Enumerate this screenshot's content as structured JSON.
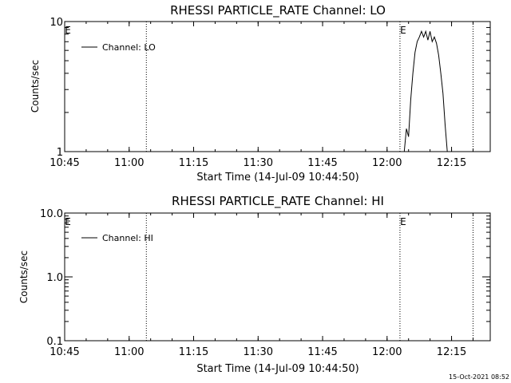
{
  "panels": [
    {
      "id": "lo",
      "title": "RHESSI PARTICLE_RATE Channel: LO",
      "ylabel": "Counts/sec",
      "xlabel": "Start Time (14-Jul-09 10:44:50)",
      "legend": "Channel: LO",
      "event_marker": "E"
    },
    {
      "id": "hi",
      "title": "RHESSI PARTICLE_RATE Channel: HI",
      "ylabel": "Counts/sec",
      "xlabel": "Start Time (14-Jul-09 10:44:50)",
      "legend": "Channel: HI",
      "event_marker": "E"
    }
  ],
  "footer_timestamp": "15-Oct-2021 08:52",
  "chart_data": [
    {
      "type": "line",
      "title": "RHESSI PARTICLE_RATE Channel: LO",
      "xlabel": "Start Time (14-Jul-09 10:44:50)",
      "ylabel": "Counts/sec",
      "yscale": "log",
      "xlim": [
        "10:45",
        "12:24"
      ],
      "ylim": [
        1,
        10
      ],
      "ytick_labels": [
        "1",
        "10"
      ],
      "xtick_labels": [
        "10:45",
        "11:00",
        "11:15",
        "11:30",
        "11:45",
        "12:00",
        "12:15"
      ],
      "vertical_markers": [
        "11:04",
        "12:03",
        "12:20"
      ],
      "legend_position": "top-left",
      "grid": false,
      "series": [
        {
          "name": "Channel: LO",
          "x": [
            "12:04",
            "12:04.5",
            "12:05",
            "12:05.5",
            "12:06",
            "12:06.5",
            "12:07",
            "12:07.5",
            "12:08",
            "12:08.5",
            "12:09",
            "12:09.5",
            "12:10",
            "12:10.5",
            "12:11",
            "12:11.5",
            "12:12",
            "12:12.5",
            "12:13",
            "12:13.5",
            "12:14"
          ],
          "y": [
            1.0,
            1.5,
            1.3,
            2.5,
            4.0,
            5.8,
            7.0,
            7.6,
            8.4,
            7.6,
            8.4,
            7.2,
            8.4,
            7.0,
            7.6,
            6.8,
            5.5,
            4.0,
            2.8,
            1.6,
            1.0
          ]
        }
      ]
    },
    {
      "type": "line",
      "title": "RHESSI PARTICLE_RATE Channel: HI",
      "xlabel": "Start Time (14-Jul-09 10:44:50)",
      "ylabel": "Counts/sec",
      "yscale": "log",
      "xlim": [
        "10:45",
        "12:24"
      ],
      "ylim": [
        0.1,
        10
      ],
      "ytick_labels": [
        "0.1",
        "1.0",
        "10.0"
      ],
      "xtick_labels": [
        "10:45",
        "11:00",
        "11:15",
        "11:30",
        "11:45",
        "12:00",
        "12:15"
      ],
      "vertical_markers": [
        "11:04",
        "12:03",
        "12:20"
      ],
      "legend_position": "top-left",
      "grid": false,
      "series": [
        {
          "name": "Channel: HI",
          "x": [],
          "y": []
        }
      ]
    }
  ]
}
